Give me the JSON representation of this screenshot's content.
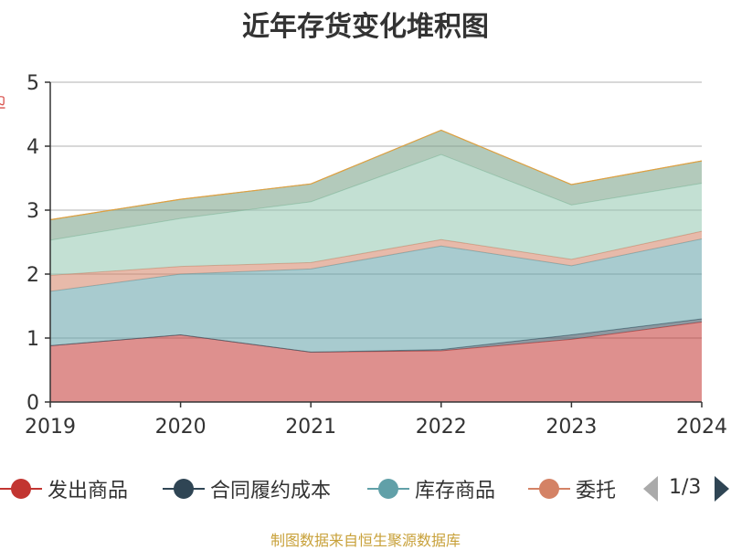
{
  "title": "近年存货变化堆积图",
  "source": "制图数据来自恒生聚源数据库",
  "ylabel_stub": "亿",
  "pager": {
    "text": "1/3"
  },
  "legend": {
    "items": [
      {
        "label": "发出商品",
        "color": "#c23531"
      },
      {
        "label": "合同履约成本",
        "color": "#2f4554"
      },
      {
        "label": "库存商品",
        "color": "#61a0a8"
      },
      {
        "label": "委托",
        "color": "#d48265"
      }
    ]
  },
  "chart_data": {
    "type": "area",
    "stacked": true,
    "title": "近年存货变化堆积图",
    "x": [
      "2019",
      "2020",
      "2021",
      "2022",
      "2023",
      "2024"
    ],
    "ylim": [
      0,
      5
    ],
    "yticks": [
      "0",
      "1",
      "2",
      "3",
      "4",
      "5"
    ],
    "grid": true,
    "legend_position": "bottom",
    "series": [
      {
        "name": "发出商品",
        "color": "#c23531",
        "values": [
          0.88,
          1.05,
          0.78,
          0.8,
          0.98,
          1.25
        ]
      },
      {
        "name": "合同履约成本",
        "color": "#2f4554",
        "values": [
          0.0,
          0.0,
          0.0,
          0.02,
          0.07,
          0.05
        ]
      },
      {
        "name": "库存商品",
        "color": "#61a0a8",
        "values": [
          0.85,
          0.95,
          1.3,
          1.62,
          1.08,
          1.25
        ]
      },
      {
        "name": "委托",
        "color": "#d48265",
        "values": [
          0.25,
          0.12,
          0.1,
          0.1,
          0.1,
          0.12
        ]
      },
      {
        "color": "#91c7ae",
        "values": [
          0.55,
          0.75,
          0.95,
          1.33,
          0.85,
          0.75
        ]
      },
      {
        "color": "#749f83",
        "values": [
          0.32,
          0.3,
          0.28,
          0.38,
          0.32,
          0.35
        ]
      }
    ]
  }
}
